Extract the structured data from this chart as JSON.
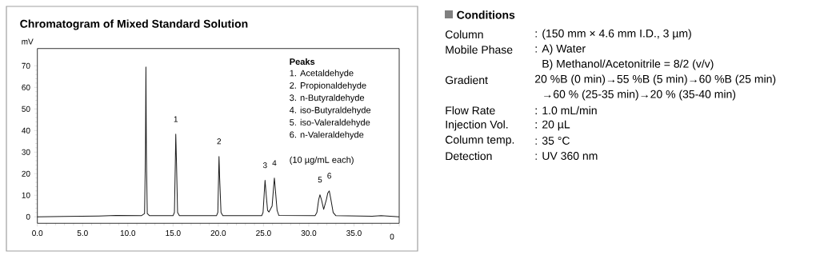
{
  "chart_data": [
    {
      "type": "line",
      "title": "Chromatogram of Mixed Standard Solution",
      "ylabel": "mV",
      "color": "#1a1a1a",
      "x": [
        0,
        3,
        6.8,
        8.7,
        11.5,
        11.85,
        11.95,
        12.0,
        12.05,
        12.15,
        12.4,
        15.0,
        15.15,
        15.25,
        15.3,
        15.38,
        15.5,
        15.7,
        19.8,
        19.95,
        20.03,
        20.08,
        20.15,
        20.3,
        20.5,
        24.8,
        24.95,
        25.08,
        25.17,
        25.28,
        25.45,
        25.6,
        25.95,
        26.1,
        26.2,
        26.32,
        26.5,
        26.7,
        30.7,
        30.9,
        31.1,
        31.24,
        31.4,
        31.65,
        31.95,
        32.1,
        32.27,
        32.45,
        32.7,
        33.0,
        37.0,
        38.0,
        40.0
      ],
      "values": [
        0,
        0.2,
        0.4,
        0.6,
        0.5,
        1.5,
        30,
        69.5,
        30,
        1.5,
        0.5,
        0.5,
        2,
        25,
        38.3,
        25,
        2,
        0.5,
        0.5,
        2,
        18,
        28.0,
        18,
        2,
        0.5,
        0.5,
        2,
        11,
        16.9,
        11,
        3,
        2.2,
        5,
        13,
        18.0,
        12,
        3,
        0.6,
        0.5,
        2,
        8,
        10.2,
        8,
        3.5,
        8,
        11,
        12.0,
        8,
        2,
        0.5,
        0.3,
        0.5,
        0
      ],
      "xlim": [
        0,
        40
      ],
      "ylim": [
        -3,
        78
      ],
      "xticks": [
        {
          "value": 0,
          "label": "0.0"
        },
        {
          "value": 5,
          "label": "5.0"
        },
        {
          "value": 10,
          "label": "10.0"
        },
        {
          "value": 15,
          "label": "15.0"
        },
        {
          "value": 20,
          "label": "20.0"
        },
        {
          "value": 25,
          "label": "25.0"
        },
        {
          "value": 30,
          "label": "30.0"
        },
        {
          "value": 35,
          "label": "35.0"
        },
        {
          "value": 40,
          "label": null
        }
      ],
      "yticks": [
        0,
        10,
        20,
        30,
        40,
        50,
        60,
        70
      ],
      "annotations": [
        "Peaks",
        "1. Acetaldehyde",
        "2. Propionaldehyde",
        "3. n-Butyraldehyde",
        "4. iso-Butyraldehyde",
        "5. iso-Valeraldehyde",
        "6. n-Valeraldehyde",
        "(10 µg/mL each)",
        "0",
        {
          "text": "1",
          "x": 15.3,
          "y": 38.3
        },
        {
          "text": "2",
          "x": 20.08,
          "y": 28.0
        },
        {
          "text": "3",
          "x": 25.17,
          "y": 16.9
        },
        {
          "text": "4",
          "x": 26.2,
          "y": 18.0
        },
        {
          "text": "5",
          "x": 31.24,
          "y": 10.2
        },
        {
          "text": "6",
          "x": 32.27,
          "y": 12.0
        }
      ]
    },
    {
      "type": "other",
      "title": "Conditions",
      "annotations": [
        "Column",
        ": (150 mm × 4.6 mm I.D., 3 µm)",
        "Mobile Phase",
        ": A) Water",
        "B) Methanol/Acetonitrile = 8/2 (v/v)",
        "Gradient",
        "20 %B (0 min)→55 %B (5 min)→60 %B (25 min)",
        "→60 % (25-35 min)→20 % (35-40 min)",
        "Flow Rate",
        ": 1.0 mL/min",
        "Injection Vol.",
        ": 20 µL",
        "Column temp.",
        ": 35 °C",
        "Detection",
        ": UV 360 nm"
      ]
    }
  ]
}
